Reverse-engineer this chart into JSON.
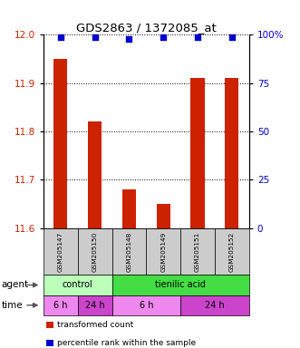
{
  "title": "GDS2863 / 1372085_at",
  "samples": [
    "GSM205147",
    "GSM205150",
    "GSM205148",
    "GSM205149",
    "GSM205151",
    "GSM205152"
  ],
  "bar_values": [
    11.95,
    11.82,
    11.68,
    11.65,
    11.91,
    11.91
  ],
  "percentile_values": [
    99,
    99,
    98,
    99,
    99,
    99
  ],
  "ylim_left": [
    11.6,
    12.0
  ],
  "ylim_right": [
    0,
    100
  ],
  "yticks_left": [
    11.6,
    11.7,
    11.8,
    11.9,
    12.0
  ],
  "yticks_right": [
    0,
    25,
    50,
    75,
    100
  ],
  "ytick_right_labels": [
    "0",
    "25",
    "50",
    "75",
    "100%"
  ],
  "bar_color": "#cc2200",
  "dot_color": "#0000cc",
  "agent_row": [
    {
      "label": "control",
      "start": 0,
      "end": 2,
      "color": "#bbffbb"
    },
    {
      "label": "tienilic acid",
      "start": 2,
      "end": 6,
      "color": "#44dd44"
    }
  ],
  "time_row": [
    {
      "label": "6 h",
      "start": 0,
      "end": 1,
      "color": "#ee88ee"
    },
    {
      "label": "24 h",
      "start": 1,
      "end": 2,
      "color": "#cc44cc"
    },
    {
      "label": "6 h",
      "start": 2,
      "end": 4,
      "color": "#ee88ee"
    },
    {
      "label": "24 h",
      "start": 4,
      "end": 6,
      "color": "#cc44cc"
    }
  ],
  "sample_box_color": "#cccccc",
  "legend_items": [
    {
      "color": "#cc2200",
      "label": "transformed count"
    },
    {
      "color": "#0000cc",
      "label": "percentile rank within the sample"
    }
  ]
}
